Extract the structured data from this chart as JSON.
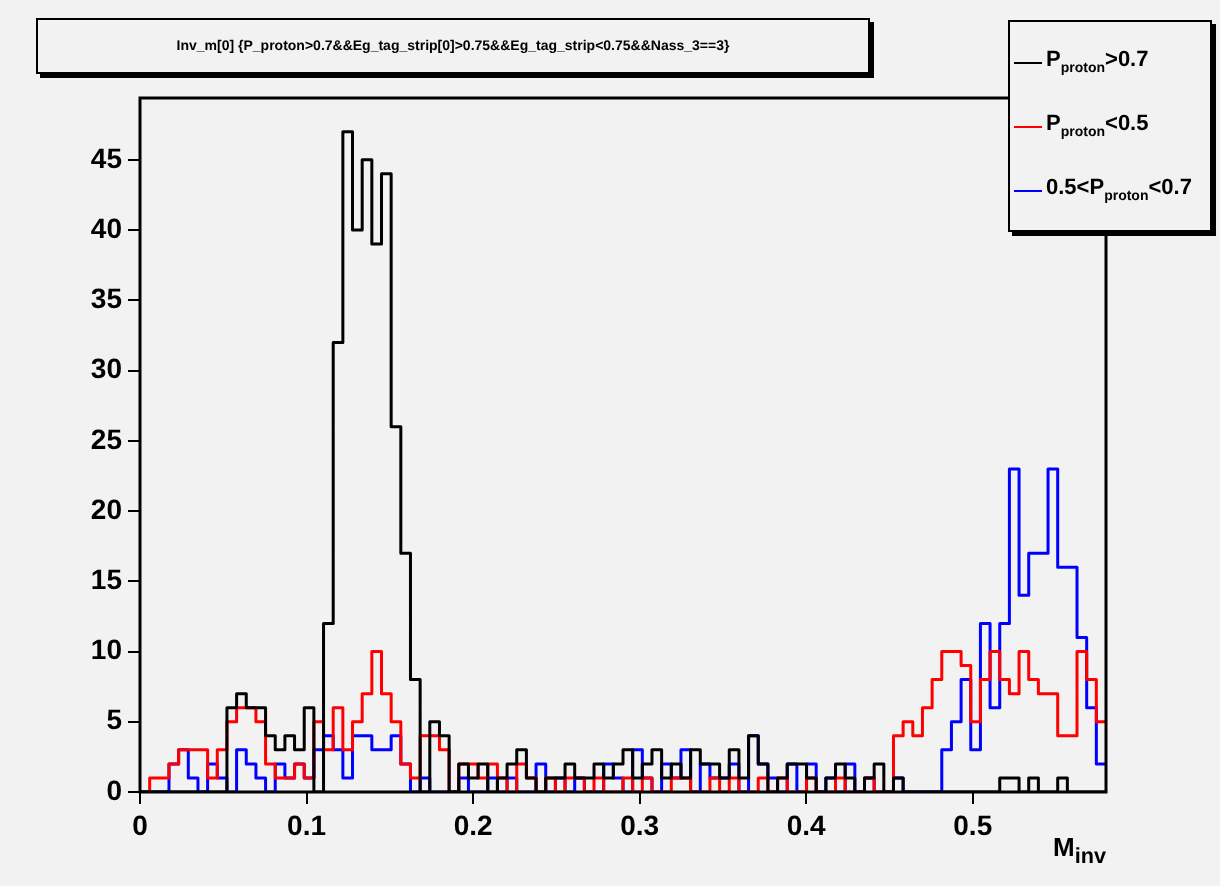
{
  "chart_data": {
    "type": "histogram",
    "title": "Inv_m[0] {P_proton>0.7&&Eg_tag_strip[0]>0.75&&Eg_tag_strip<0.75&&Nass_3==3}",
    "xlabel": "M$_{inv}$",
    "bins": [
      0,
      0.0058,
      0.0116,
      0.0174,
      0.0232,
      0.029,
      0.0348,
      0.0406,
      0.0464,
      0.0522,
      0.058,
      0.0638,
      0.0696,
      0.0754,
      0.0812,
      0.087,
      0.0928,
      0.0986,
      0.1044,
      0.1102,
      0.116,
      0.1218,
      0.1276,
      0.1334,
      0.1392,
      0.145,
      0.1508,
      0.1566,
      0.1624,
      0.1682,
      0.174,
      0.1798,
      0.1856,
      0.1914,
      0.1972,
      0.203,
      0.2088,
      0.2146,
      0.2204,
      0.2262,
      0.232,
      0.2378,
      0.2436,
      0.2494,
      0.2552,
      0.261,
      0.2668,
      0.2726,
      0.2784,
      0.2842,
      0.29,
      0.2958,
      0.3016,
      0.3074,
      0.3132,
      0.319,
      0.3248,
      0.3306,
      0.3364,
      0.3422,
      0.348,
      0.3538,
      0.3596,
      0.3654,
      0.3712,
      0.377,
      0.3828,
      0.3886,
      0.3944,
      0.4002,
      0.406,
      0.4118,
      0.4176,
      0.4234,
      0.4292,
      0.435,
      0.4408,
      0.4466,
      0.4524,
      0.4582,
      0.464,
      0.4698,
      0.4756,
      0.4814,
      0.4872,
      0.493,
      0.4988,
      0.5046,
      0.5104,
      0.5162,
      0.522,
      0.5278,
      0.5336,
      0.5394,
      0.5452,
      0.551,
      0.5568,
      0.5626,
      0.5684,
      0.5742,
      0.58
    ],
    "series": [
      {
        "name": "P$_{proton}$>0.7",
        "color": "#000000",
        "values": [
          0,
          0,
          0,
          0,
          0,
          0,
          0,
          0,
          0,
          6,
          7,
          6,
          6,
          4,
          3,
          4,
          3,
          6,
          0,
          12,
          32,
          47,
          40,
          45,
          39,
          44,
          26,
          17,
          8,
          0,
          5,
          4,
          0,
          2,
          1,
          2,
          0,
          1,
          2,
          3,
          1,
          0,
          1,
          1,
          2,
          1,
          1,
          2,
          1,
          2,
          3,
          1,
          2,
          3,
          1,
          2,
          1,
          3,
          2,
          2,
          1,
          3,
          1,
          4,
          2,
          0,
          1,
          2,
          2,
          1,
          0,
          1,
          2,
          1,
          0,
          1,
          2,
          0,
          1,
          0,
          0,
          0,
          0,
          0,
          0,
          0,
          0,
          0,
          0,
          1,
          1,
          0,
          1,
          0,
          0,
          1,
          0,
          0,
          0,
          0
        ]
      },
      {
        "name": "P$_{proton}$<0.5",
        "color": "#ff0000",
        "values": [
          0,
          1,
          1,
          2,
          3,
          3,
          3,
          1,
          3,
          5,
          6,
          6,
          5,
          2,
          1,
          1,
          2,
          1,
          5,
          3,
          6,
          3,
          5,
          7,
          10,
          7,
          5,
          2,
          1,
          4,
          4,
          3,
          0,
          2,
          2,
          1,
          2,
          1,
          0,
          2,
          1,
          0,
          1,
          0,
          1,
          1,
          0,
          1,
          0,
          0,
          1,
          0,
          1,
          0,
          0,
          1,
          1,
          0,
          0,
          1,
          0,
          1,
          0,
          0,
          1,
          0,
          1,
          0,
          0,
          1,
          0,
          0,
          1,
          0,
          0,
          1,
          0,
          0,
          4,
          5,
          4,
          6,
          8,
          10,
          10,
          9,
          5,
          8,
          10,
          8,
          7,
          10,
          8,
          7,
          7,
          4,
          4,
          10,
          8,
          5
        ]
      },
      {
        "name": "0.5<P$_{proton}$<0.7",
        "color": "#0000ff",
        "values": [
          0,
          0,
          0,
          2,
          3,
          1,
          0,
          2,
          1,
          0,
          3,
          2,
          1,
          0,
          2,
          1,
          2,
          1,
          3,
          4,
          3,
          1,
          4,
          4,
          3,
          3,
          4,
          2,
          0,
          1,
          0,
          0,
          0,
          1,
          0,
          0,
          1,
          0,
          1,
          0,
          0,
          2,
          0,
          1,
          0,
          1,
          0,
          0,
          2,
          1,
          0,
          3,
          1,
          0,
          2,
          1,
          3,
          0,
          2,
          1,
          1,
          2,
          0,
          4,
          2,
          1,
          0,
          2,
          0,
          2,
          0,
          1,
          0,
          2,
          0,
          1,
          0,
          0,
          1,
          0,
          0,
          0,
          0,
          3,
          5,
          8,
          3,
          12,
          6,
          12,
          23,
          14,
          17,
          17,
          23,
          16,
          16,
          11,
          6,
          2
        ]
      }
    ],
    "xlim": [
      0,
      0.58
    ],
    "xticks": [
      0,
      0.1,
      0.2,
      0.3,
      0.4,
      0.5
    ],
    "ylim": [
      0,
      49.4
    ],
    "yticks": [
      0,
      5,
      10,
      15,
      20,
      25,
      30,
      35,
      40,
      45
    ],
    "grid": false,
    "legend": "top right",
    "marker": "none"
  }
}
